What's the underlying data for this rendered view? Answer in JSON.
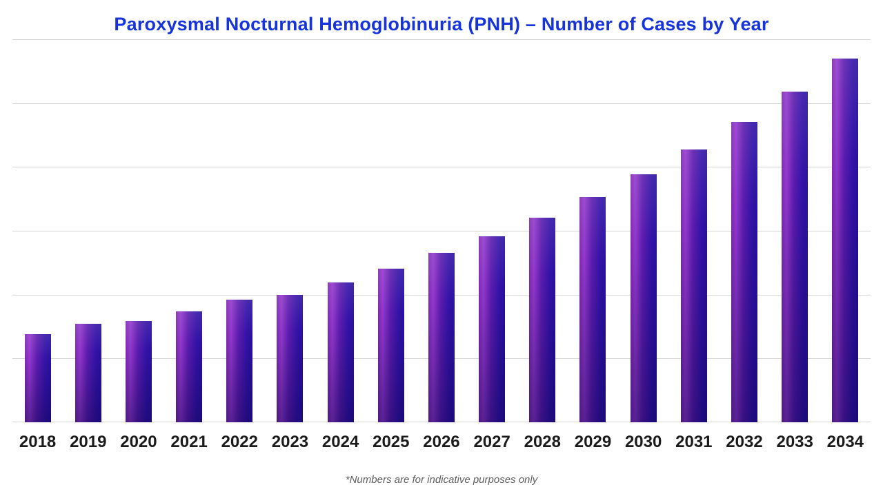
{
  "title": {
    "text": "Paroxysmal Nocturnal Hemoglobinuria (PNH) – Number of Cases by Year",
    "color": "#1733db"
  },
  "footnote": {
    "text": "*Numbers are for indicative purposes only"
  },
  "chart_data": {
    "type": "bar",
    "title": "Paroxysmal Nocturnal Hemoglobinuria (PNH) – Number of Cases by Year",
    "categories": [
      "2018",
      "2019",
      "2020",
      "2021",
      "2022",
      "2023",
      "2024",
      "2025",
      "2026",
      "2027",
      "2028",
      "2029",
      "2030",
      "2031",
      "2032",
      "2033",
      "2034"
    ],
    "values": [
      1.39,
      1.54,
      1.59,
      1.74,
      1.92,
      1.99,
      2.19,
      2.41,
      2.66,
      2.92,
      3.2,
      3.53,
      3.88,
      4.28,
      4.71,
      5.18,
      5.7
    ],
    "values_note": "y-axis has no tick labels; values expressed in gridline units (baseline = 0, each horizontal gridline = +1, top gridline = 6)",
    "bar_heights_pct": [
      23.1,
      25.7,
      26.4,
      29.0,
      32.0,
      33.2,
      36.5,
      40.1,
      44.3,
      48.6,
      53.4,
      58.8,
      64.7,
      71.3,
      78.5,
      86.4,
      95.0
    ],
    "xlabel": "",
    "ylabel": "",
    "ylim": [
      0,
      6
    ],
    "gridline_intervals": 6,
    "grid": "horizontal",
    "legend": false,
    "bar_gradient": [
      "#9338cc",
      "#5c1cae",
      "#2a109e",
      "#140b86"
    ],
    "gridline_color": "#d6d6d6",
    "label_color": "#1b1b1b"
  }
}
